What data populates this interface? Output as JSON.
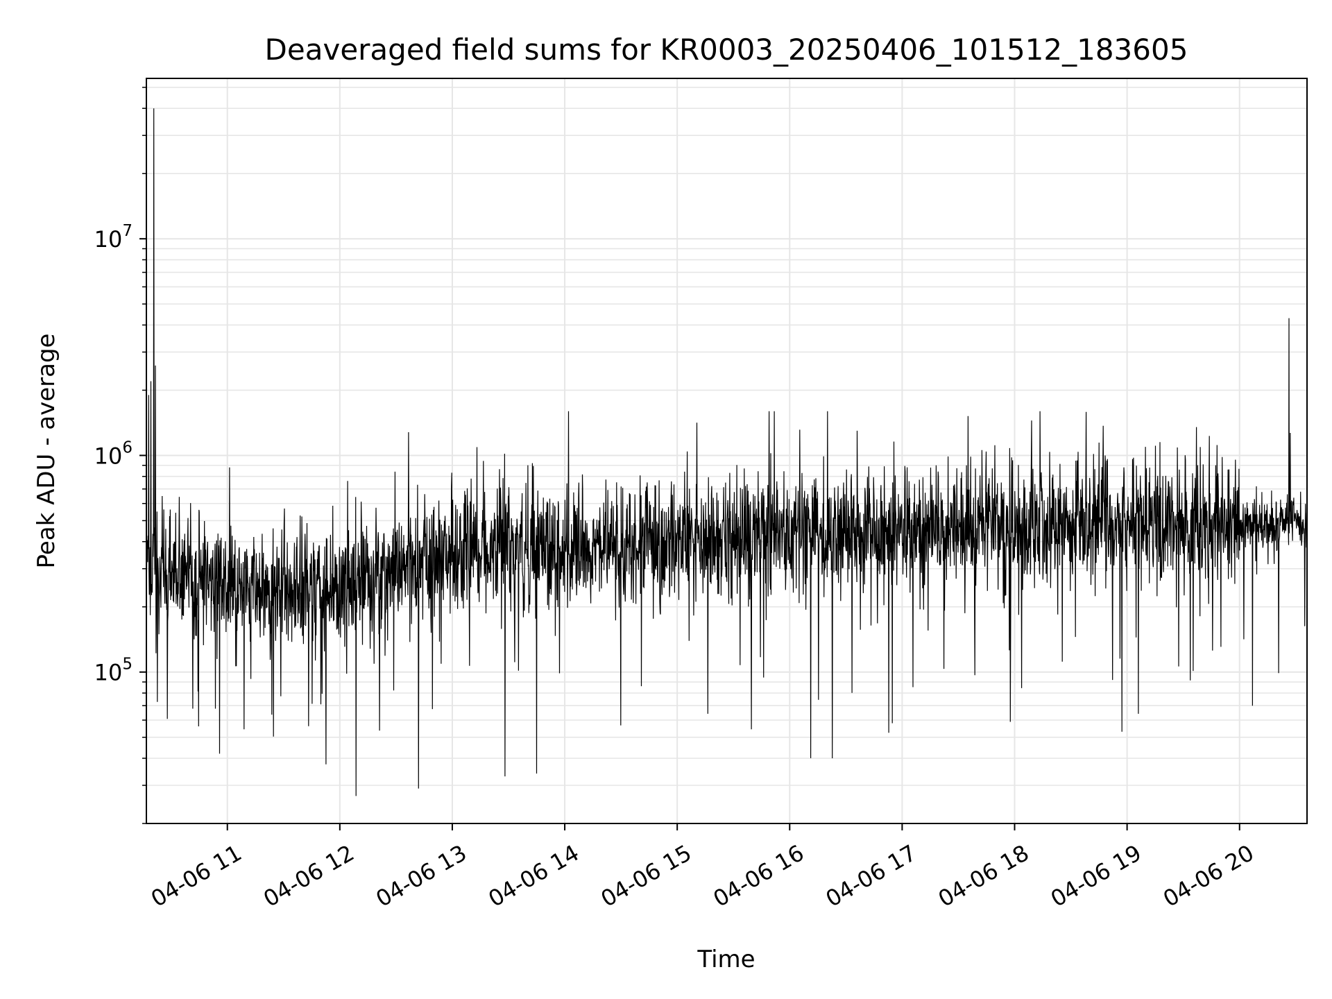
{
  "chart_data": {
    "type": "line",
    "title": "Deaveraged field sums for KR0003_20250406_101512_183605",
    "xlabel": "Time",
    "ylabel": "Peak ADU - average",
    "x_date": "04-06",
    "xlim_hours": [
      10.28,
      20.6
    ],
    "x_ticks": [
      {
        "hour": 11,
        "label": "04-06 11"
      },
      {
        "hour": 12,
        "label": "04-06 12"
      },
      {
        "hour": 13,
        "label": "04-06 13"
      },
      {
        "hour": 14,
        "label": "04-06 14"
      },
      {
        "hour": 15,
        "label": "04-06 15"
      },
      {
        "hour": 16,
        "label": "04-06 16"
      },
      {
        "hour": 17,
        "label": "04-06 17"
      },
      {
        "hour": 18,
        "label": "04-06 18"
      },
      {
        "hour": 19,
        "label": "04-06 19"
      },
      {
        "hour": 20,
        "label": "04-06 20"
      }
    ],
    "y_scale": "log",
    "ylim": [
      20000,
      55000000
    ],
    "y_major_ticks": [
      {
        "value": 100000,
        "base": "10",
        "exp": "5"
      },
      {
        "value": 1000000,
        "base": "10",
        "exp": "6"
      },
      {
        "value": 10000000,
        "base": "10",
        "exp": "7"
      }
    ],
    "grid": true,
    "line_color": "#000000",
    "grid_color": "#e6e6e6",
    "trend_knots": [
      {
        "hour": 10.28,
        "value": 300000
      },
      {
        "hour": 11.0,
        "value": 250000
      },
      {
        "hour": 12.0,
        "value": 240000
      },
      {
        "hour": 12.5,
        "value": 290000
      },
      {
        "hour": 13.0,
        "value": 360000
      },
      {
        "hour": 14.0,
        "value": 370000
      },
      {
        "hour": 15.0,
        "value": 390000
      },
      {
        "hour": 16.0,
        "value": 420000
      },
      {
        "hour": 17.0,
        "value": 440000
      },
      {
        "hour": 18.0,
        "value": 470000
      },
      {
        "hour": 19.0,
        "value": 490000
      },
      {
        "hour": 20.0,
        "value": 480000
      },
      {
        "hour": 20.6,
        "value": 490000
      }
    ],
    "notable_points": [
      {
        "hour": 10.3,
        "value": 1900000
      },
      {
        "hour": 10.32,
        "value": 2200000
      },
      {
        "hour": 10.345,
        "value": 40000000
      },
      {
        "hour": 10.36,
        "value": 2600000
      },
      {
        "hour": 10.93,
        "value": 42000
      },
      {
        "hour": 12.7,
        "value": 29000
      },
      {
        "hour": 13.47,
        "value": 33000
      },
      {
        "hour": 13.75,
        "value": 34000
      },
      {
        "hour": 16.38,
        "value": 40000
      },
      {
        "hour": 18.15,
        "value": 1450000
      },
      {
        "hour": 16.6,
        "value": 1300000
      },
      {
        "hour": 19.73,
        "value": 1230000
      },
      {
        "hour": 20.44,
        "value": 4300000
      }
    ]
  }
}
